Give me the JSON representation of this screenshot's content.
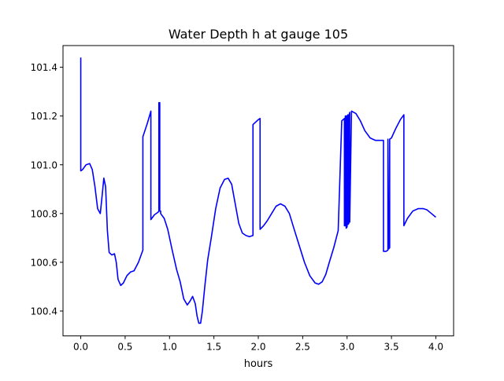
{
  "chart_data": {
    "type": "line",
    "title": "Water Depth h at gauge 105",
    "xlabel": "hours",
    "ylabel": "",
    "xlim": [
      -0.2,
      4.2
    ],
    "ylim": [
      100.298,
      101.489
    ],
    "xticks": [
      0.0,
      0.5,
      1.0,
      1.5,
      2.0,
      2.5,
      3.0,
      3.5,
      4.0
    ],
    "xtick_labels": [
      "0.0",
      "0.5",
      "1.0",
      "1.5",
      "2.0",
      "2.5",
      "3.0",
      "3.5",
      "4.0"
    ],
    "yticks": [
      100.4,
      100.6,
      100.8,
      101.0,
      101.2,
      101.4
    ],
    "ytick_labels": [
      "100.4",
      "100.6",
      "100.8",
      "101.0",
      "101.2",
      "101.4"
    ],
    "grid": false,
    "legend": "none",
    "series": [
      {
        "color": "#0000ff",
        "x": [
          0.0,
          0.0,
          0.0,
          0.02,
          0.06,
          0.1,
          0.13,
          0.16,
          0.19,
          0.22,
          0.24,
          0.26,
          0.28,
          0.3,
          0.32,
          0.35,
          0.38,
          0.4,
          0.42,
          0.45,
          0.48,
          0.52,
          0.56,
          0.6,
          0.65,
          0.7,
          0.7,
          0.75,
          0.79,
          0.79,
          0.8,
          0.83,
          0.87,
          0.88,
          0.88,
          0.89,
          0.89,
          0.89,
          0.9,
          0.9,
          0.94,
          0.98,
          1.03,
          1.08,
          1.12,
          1.16,
          1.2,
          1.23,
          1.26,
          1.29,
          1.31,
          1.33,
          1.35,
          1.37,
          1.4,
          1.43,
          1.47,
          1.52,
          1.57,
          1.62,
          1.66,
          1.7,
          1.74,
          1.78,
          1.82,
          1.86,
          1.9,
          1.94,
          1.94,
          2.0,
          2.02,
          2.02,
          2.06,
          2.1,
          2.15,
          2.2,
          2.25,
          2.3,
          2.35,
          2.4,
          2.46,
          2.52,
          2.58,
          2.64,
          2.68,
          2.72,
          2.76,
          2.8,
          2.85,
          2.9,
          2.94,
          2.97,
          2.97,
          2.98,
          2.98,
          2.99,
          2.99,
          3.0,
          3.0,
          3.01,
          3.01,
          3.02,
          3.02,
          3.03,
          3.03,
          3.05,
          3.1,
          3.15,
          3.2,
          3.26,
          3.32,
          3.38,
          3.41,
          3.41,
          3.44,
          3.46,
          3.46,
          3.46,
          3.47,
          3.48,
          3.48,
          3.5,
          3.55,
          3.6,
          3.64,
          3.64,
          3.68,
          3.74,
          3.8,
          3.86,
          3.9,
          3.95,
          4.0
        ],
        "y": [
          101.44,
          100.975,
          100.975,
          100.98,
          101.0,
          101.005,
          100.98,
          100.91,
          100.82,
          100.8,
          100.87,
          100.945,
          100.91,
          100.73,
          100.64,
          100.63,
          100.635,
          100.6,
          100.53,
          100.505,
          100.515,
          100.545,
          100.56,
          100.565,
          100.6,
          100.65,
          101.115,
          101.17,
          101.22,
          100.775,
          100.78,
          100.795,
          100.805,
          100.81,
          101.255,
          101.255,
          100.81,
          100.81,
          100.81,
          100.8,
          100.78,
          100.735,
          100.65,
          100.57,
          100.52,
          100.45,
          100.425,
          100.44,
          100.46,
          100.43,
          100.38,
          100.35,
          100.35,
          100.4,
          100.51,
          100.61,
          100.7,
          100.82,
          100.905,
          100.94,
          100.945,
          100.92,
          100.84,
          100.76,
          100.72,
          100.71,
          100.705,
          100.71,
          101.165,
          101.185,
          101.19,
          100.735,
          100.75,
          100.77,
          100.8,
          100.83,
          100.84,
          100.83,
          100.8,
          100.74,
          100.67,
          100.6,
          100.545,
          100.515,
          100.51,
          100.52,
          100.55,
          100.6,
          100.66,
          100.73,
          101.18,
          101.19,
          100.75,
          100.75,
          101.2,
          101.2,
          100.74,
          100.745,
          101.2,
          101.205,
          100.755,
          100.76,
          101.2,
          101.215,
          100.765,
          101.22,
          101.21,
          101.18,
          101.14,
          101.11,
          101.1,
          101.1,
          101.1,
          100.645,
          100.645,
          100.65,
          101.105,
          101.105,
          100.655,
          100.66,
          101.105,
          101.11,
          101.15,
          101.185,
          101.205,
          100.75,
          100.78,
          100.81,
          100.82,
          100.82,
          100.815,
          100.8,
          100.785
        ]
      }
    ]
  }
}
